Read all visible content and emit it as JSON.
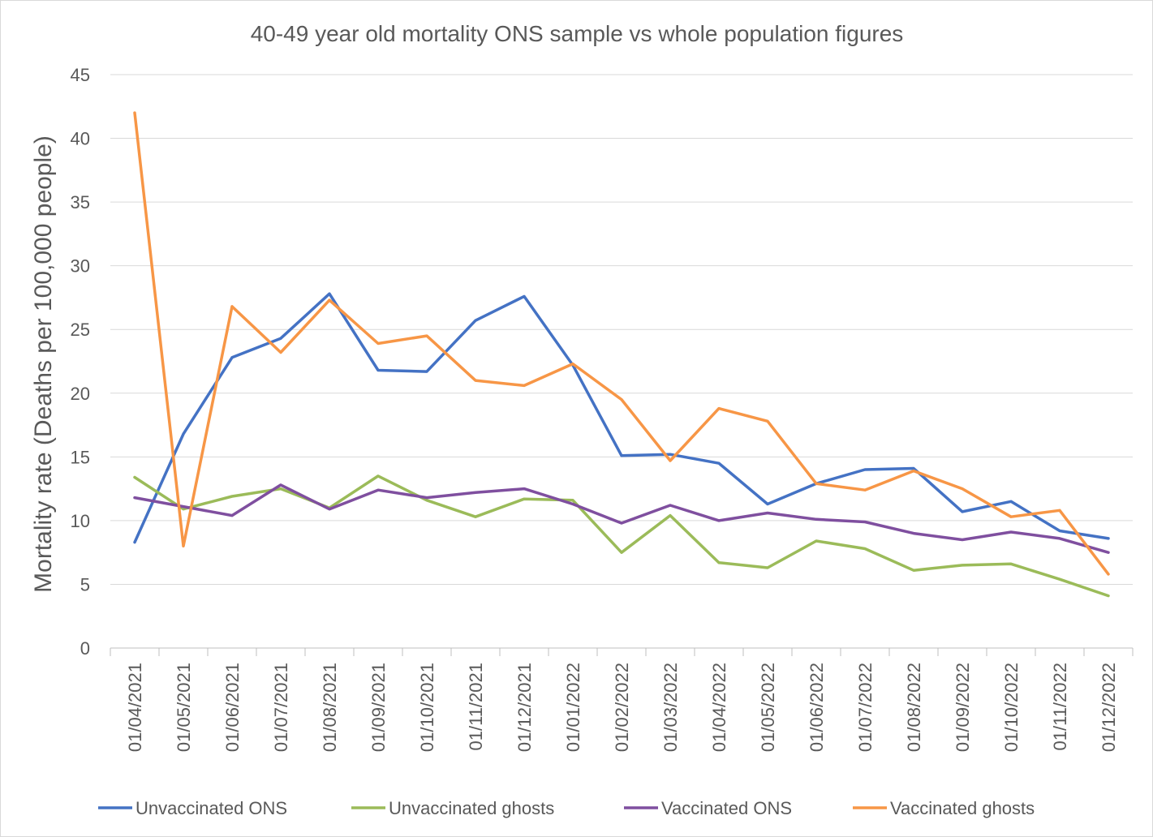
{
  "chart_data": {
    "type": "line",
    "title": "40-49 year old mortality ONS sample vs whole population figures",
    "xlabel": "",
    "ylabel": "Mortality rate (Deaths per 100,000 people)",
    "ylim": [
      0,
      45
    ],
    "yticks": [
      0,
      5,
      10,
      15,
      20,
      25,
      30,
      35,
      40,
      45
    ],
    "grid": true,
    "legend_position": "bottom",
    "categories": [
      "01/04/2021",
      "01/05/2021",
      "01/06/2021",
      "01/07/2021",
      "01/08/2021",
      "01/09/2021",
      "01/10/2021",
      "01/11/2021",
      "01/12/2021",
      "01/01/2022",
      "01/02/2022",
      "01/03/2022",
      "01/04/2022",
      "01/05/2022",
      "01/06/2022",
      "01/07/2022",
      "01/08/2022",
      "01/09/2022",
      "01/10/2022",
      "01/11/2022",
      "01/12/2022"
    ],
    "series": [
      {
        "name": "Unvaccinated ONS",
        "color": "#4472c4",
        "values": [
          8.3,
          16.8,
          22.8,
          24.3,
          27.8,
          21.8,
          21.7,
          25.7,
          27.6,
          22.2,
          15.1,
          15.2,
          14.5,
          11.3,
          12.9,
          14.0,
          14.1,
          10.7,
          11.5,
          9.2,
          8.6
        ]
      },
      {
        "name": "Unvaccinated ghosts",
        "color": "#9bbb59",
        "values": [
          13.4,
          10.9,
          11.9,
          12.5,
          11.0,
          13.5,
          11.6,
          10.3,
          11.7,
          11.6,
          7.5,
          10.4,
          6.7,
          6.3,
          8.4,
          7.8,
          6.1,
          6.5,
          6.6,
          5.4,
          4.1
        ]
      },
      {
        "name": "Vaccinated ONS",
        "color": "#7f4f9f",
        "values": [
          11.8,
          11.1,
          10.4,
          12.8,
          10.9,
          12.4,
          11.8,
          12.2,
          12.5,
          11.3,
          9.8,
          11.2,
          10.0,
          10.6,
          10.1,
          9.9,
          9.0,
          8.5,
          9.1,
          8.6,
          7.5
        ]
      },
      {
        "name": "Vaccinated ghosts",
        "color": "#f79646",
        "values": [
          42.0,
          8.0,
          26.8,
          23.2,
          27.3,
          23.9,
          24.5,
          21.0,
          20.6,
          22.3,
          19.5,
          14.7,
          18.8,
          17.8,
          12.9,
          12.4,
          13.9,
          12.5,
          10.3,
          10.8,
          5.8
        ]
      }
    ]
  }
}
